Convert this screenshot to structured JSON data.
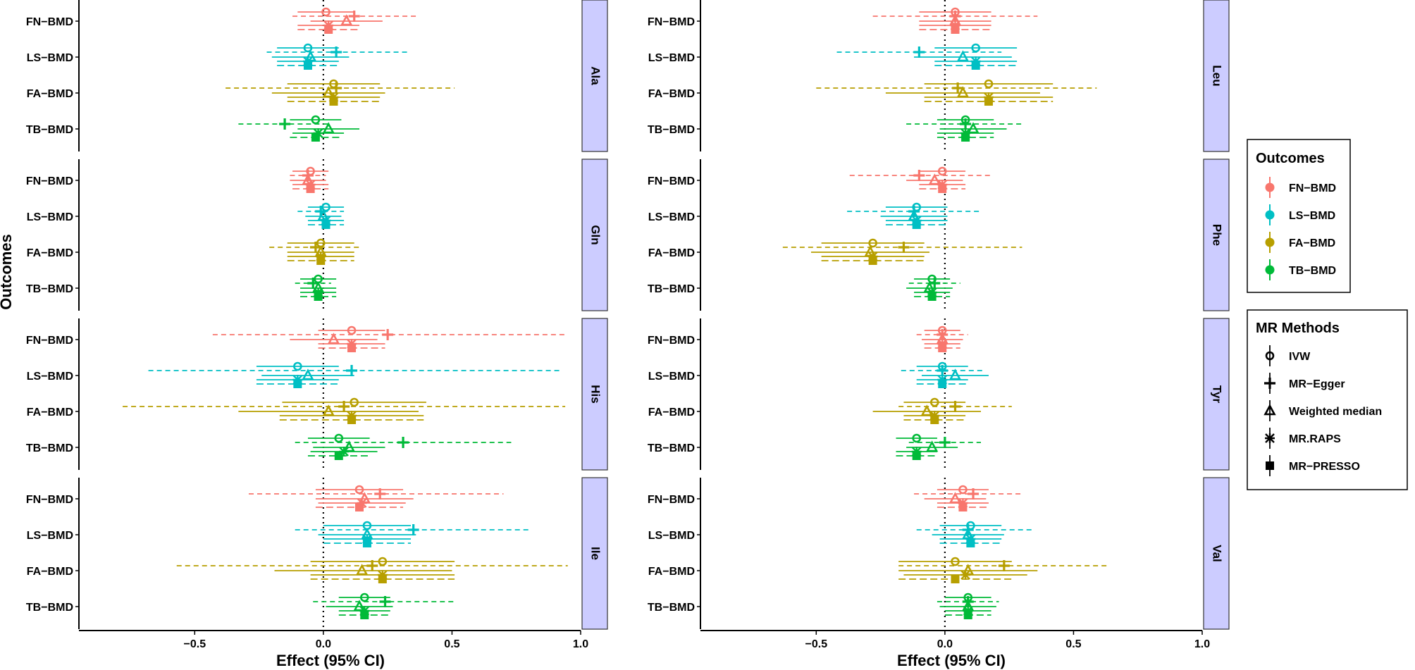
{
  "chart_data": {
    "type": "forest",
    "ylabel": "Outcomes",
    "xlabel": "Effect (95% CI)",
    "xlim": [
      -0.95,
      1.0
    ],
    "xticks": [
      -0.5,
      0.0,
      0.5,
      1.0
    ],
    "xtick_labels": [
      "−0.5",
      "0.0",
      "0.5",
      "1.0"
    ],
    "outcomes": [
      "FN−BMD",
      "LS−BMD",
      "FA−BMD",
      "TB−BMD"
    ],
    "methods": [
      "IVW",
      "MR−Egger",
      "Weighted median",
      "MR.RAPS",
      "MR−PRESSO"
    ],
    "colors": {
      "FN-BMD": "#F8766D",
      "LS-BMD": "#00BFC4",
      "FA-BMD": "#B79F00",
      "TB-BMD": "#00BA38"
    },
    "legend": {
      "outcomes_title": "Outcomes",
      "outcomes_labels": [
        "FN−BMD",
        "LS−BMD",
        "FA−BMD",
        "TB−BMD"
      ],
      "methods_title": "MR Methods",
      "methods_labels": [
        "IVW",
        "MR−Egger",
        "Weighted median",
        "MR.RAPS",
        "MR−PRESSO"
      ]
    },
    "panels": [
      {
        "name": "Ala",
        "col": 0,
        "row": 0,
        "estimates": [
          [
            [
              0.01,
              -0.1,
              0.12
            ],
            [
              0.12,
              -0.12,
              0.36
            ],
            [
              0.09,
              -0.05,
              0.23
            ],
            [
              0.02,
              -0.1,
              0.14
            ],
            [
              0.02,
              -0.1,
              0.14
            ]
          ],
          [
            [
              -0.06,
              -0.18,
              0.06
            ],
            [
              0.05,
              -0.22,
              0.33
            ],
            [
              -0.05,
              -0.2,
              0.1
            ],
            [
              -0.06,
              -0.18,
              0.06
            ],
            [
              -0.06,
              -0.18,
              0.06
            ]
          ],
          [
            [
              0.04,
              -0.14,
              0.22
            ],
            [
              0.05,
              -0.38,
              0.51
            ],
            [
              0.02,
              -0.2,
              0.24
            ],
            [
              0.04,
              -0.14,
              0.22
            ],
            [
              0.04,
              -0.14,
              0.22
            ]
          ],
          [
            [
              -0.03,
              -0.13,
              0.07
            ],
            [
              -0.15,
              -0.33,
              0.03
            ],
            [
              0.02,
              -0.1,
              0.14
            ],
            [
              -0.02,
              -0.12,
              0.08
            ],
            [
              -0.03,
              -0.13,
              0.07
            ]
          ]
        ]
      },
      {
        "name": "Gln",
        "col": 0,
        "row": 1,
        "estimates": [
          [
            [
              -0.05,
              -0.12,
              0.02
            ],
            [
              -0.06,
              -0.13,
              0.01
            ],
            [
              -0.06,
              -0.13,
              0.01
            ],
            [
              -0.05,
              -0.12,
              0.02
            ],
            [
              -0.05,
              -0.12,
              0.02
            ]
          ],
          [
            [
              0.01,
              -0.06,
              0.08
            ],
            [
              -0.01,
              -0.1,
              0.08
            ],
            [
              0.0,
              -0.07,
              0.07
            ],
            [
              0.01,
              -0.06,
              0.08
            ],
            [
              0.01,
              -0.06,
              0.08
            ]
          ],
          [
            [
              -0.01,
              -0.14,
              0.12
            ],
            [
              -0.03,
              -0.21,
              0.15
            ],
            [
              -0.01,
              -0.14,
              0.12
            ],
            [
              -0.01,
              -0.14,
              0.12
            ],
            [
              -0.01,
              -0.14,
              0.12
            ]
          ],
          [
            [
              -0.02,
              -0.09,
              0.05
            ],
            [
              -0.04,
              -0.11,
              0.03
            ],
            [
              -0.02,
              -0.09,
              0.05
            ],
            [
              -0.02,
              -0.09,
              0.05
            ],
            [
              -0.02,
              -0.09,
              0.05
            ]
          ]
        ]
      },
      {
        "name": "His",
        "col": 0,
        "row": 2,
        "estimates": [
          [
            [
              0.11,
              -0.02,
              0.24
            ],
            [
              0.25,
              -0.43,
              0.94
            ],
            [
              0.04,
              -0.13,
              0.21
            ],
            [
              0.11,
              -0.02,
              0.24
            ],
            [
              0.11,
              -0.02,
              0.24
            ]
          ],
          [
            [
              -0.1,
              -0.26,
              0.06
            ],
            [
              0.11,
              -0.68,
              0.92
            ],
            [
              -0.06,
              -0.24,
              0.12
            ],
            [
              -0.1,
              -0.26,
              0.06
            ],
            [
              -0.1,
              -0.26,
              0.06
            ]
          ],
          [
            [
              0.12,
              -0.16,
              0.4
            ],
            [
              0.08,
              -0.78,
              0.94
            ],
            [
              0.02,
              -0.33,
              0.37
            ],
            [
              0.11,
              -0.17,
              0.39
            ],
            [
              0.11,
              -0.17,
              0.39
            ]
          ],
          [
            [
              0.06,
              -0.06,
              0.18
            ],
            [
              0.31,
              -0.11,
              0.73
            ],
            [
              0.1,
              -0.04,
              0.24
            ],
            [
              0.08,
              -0.05,
              0.21
            ],
            [
              0.06,
              -0.06,
              0.18
            ]
          ]
        ]
      },
      {
        "name": "Ile",
        "col": 0,
        "row": 3,
        "estimates": [
          [
            [
              0.14,
              -0.03,
              0.31
            ],
            [
              0.22,
              -0.29,
              0.7
            ],
            [
              0.16,
              -0.03,
              0.35
            ],
            [
              0.15,
              -0.02,
              0.32
            ],
            [
              0.14,
              -0.03,
              0.31
            ]
          ],
          [
            [
              0.17,
              0.0,
              0.34
            ],
            [
              0.35,
              -0.11,
              0.8
            ],
            [
              0.17,
              -0.02,
              0.36
            ],
            [
              0.17,
              0.0,
              0.34
            ],
            [
              0.17,
              0.0,
              0.34
            ]
          ],
          [
            [
              0.23,
              -0.05,
              0.51
            ],
            [
              0.19,
              -0.57,
              0.95
            ],
            [
              0.15,
              -0.19,
              0.5
            ],
            [
              0.23,
              -0.05,
              0.51
            ],
            [
              0.23,
              -0.05,
              0.51
            ]
          ],
          [
            [
              0.16,
              0.06,
              0.26
            ],
            [
              0.24,
              -0.04,
              0.51
            ],
            [
              0.14,
              0.01,
              0.27
            ],
            [
              0.16,
              0.06,
              0.26
            ],
            [
              0.16,
              0.06,
              0.26
            ]
          ]
        ]
      },
      {
        "name": "Leu",
        "col": 1,
        "row": 0,
        "estimates": [
          [
            [
              0.04,
              -0.1,
              0.18
            ],
            [
              0.04,
              -0.28,
              0.36
            ],
            [
              0.04,
              -0.1,
              0.18
            ],
            [
              0.04,
              -0.1,
              0.18
            ],
            [
              0.04,
              -0.1,
              0.18
            ]
          ],
          [
            [
              0.12,
              -0.04,
              0.28
            ],
            [
              -0.1,
              -0.42,
              0.22
            ],
            [
              0.07,
              -0.12,
              0.26
            ],
            [
              0.12,
              -0.04,
              0.28
            ],
            [
              0.12,
              -0.04,
              0.28
            ]
          ],
          [
            [
              0.17,
              -0.08,
              0.42
            ],
            [
              0.05,
              -0.5,
              0.59
            ],
            [
              0.07,
              -0.23,
              0.37
            ],
            [
              0.17,
              -0.08,
              0.42
            ],
            [
              0.17,
              -0.08,
              0.42
            ]
          ],
          [
            [
              0.08,
              -0.03,
              0.19
            ],
            [
              0.08,
              -0.15,
              0.31
            ],
            [
              0.11,
              -0.02,
              0.24
            ],
            [
              0.08,
              -0.03,
              0.19
            ],
            [
              0.08,
              -0.03,
              0.19
            ]
          ]
        ]
      },
      {
        "name": "Phe",
        "col": 1,
        "row": 1,
        "estimates": [
          [
            [
              -0.01,
              -0.1,
              0.08
            ],
            [
              -0.1,
              -0.37,
              0.18
            ],
            [
              -0.04,
              -0.15,
              0.07
            ],
            [
              -0.01,
              -0.1,
              0.08
            ],
            [
              -0.01,
              -0.1,
              0.08
            ]
          ],
          [
            [
              -0.11,
              -0.23,
              0.01
            ],
            [
              -0.12,
              -0.38,
              0.14
            ],
            [
              -0.12,
              -0.25,
              0.01
            ],
            [
              -0.11,
              -0.23,
              0.01
            ],
            [
              -0.11,
              -0.23,
              0.01
            ]
          ],
          [
            [
              -0.28,
              -0.48,
              -0.08
            ],
            [
              -0.16,
              -0.63,
              0.3
            ],
            [
              -0.29,
              -0.52,
              -0.06
            ],
            [
              -0.28,
              -0.48,
              -0.08
            ],
            [
              -0.28,
              -0.48,
              -0.08
            ]
          ],
          [
            [
              -0.05,
              -0.12,
              0.02
            ],
            [
              -0.04,
              -0.14,
              0.06
            ],
            [
              -0.06,
              -0.15,
              0.03
            ],
            [
              -0.05,
              -0.12,
              0.02
            ],
            [
              -0.05,
              -0.12,
              0.02
            ]
          ]
        ]
      },
      {
        "name": "Tyr",
        "col": 1,
        "row": 2,
        "estimates": [
          [
            [
              -0.01,
              -0.08,
              0.06
            ],
            [
              -0.01,
              -0.11,
              0.09
            ],
            [
              -0.01,
              -0.09,
              0.07
            ],
            [
              -0.01,
              -0.08,
              0.06
            ],
            [
              -0.01,
              -0.08,
              0.06
            ]
          ],
          [
            [
              -0.01,
              -0.11,
              0.09
            ],
            [
              -0.01,
              -0.17,
              0.15
            ],
            [
              0.04,
              -0.09,
              0.17
            ],
            [
              -0.01,
              -0.11,
              0.09
            ],
            [
              -0.01,
              -0.11,
              0.09
            ]
          ],
          [
            [
              -0.04,
              -0.16,
              0.08
            ],
            [
              0.04,
              -0.18,
              0.26
            ],
            [
              -0.07,
              -0.28,
              0.14
            ],
            [
              -0.04,
              -0.16,
              0.08
            ],
            [
              -0.04,
              -0.16,
              0.08
            ]
          ],
          [
            [
              -0.11,
              -0.19,
              -0.03
            ],
            [
              0.0,
              -0.14,
              0.14
            ],
            [
              -0.05,
              -0.15,
              0.05
            ],
            [
              -0.11,
              -0.19,
              -0.03
            ],
            [
              -0.11,
              -0.19,
              -0.03
            ]
          ]
        ]
      },
      {
        "name": "Val",
        "col": 1,
        "row": 3,
        "estimates": [
          [
            [
              0.07,
              -0.03,
              0.17
            ],
            [
              0.11,
              -0.12,
              0.3
            ],
            [
              0.04,
              -0.08,
              0.16
            ],
            [
              0.07,
              -0.03,
              0.17
            ],
            [
              0.07,
              -0.03,
              0.17
            ]
          ],
          [
            [
              0.1,
              -0.02,
              0.22
            ],
            [
              0.09,
              -0.11,
              0.34
            ],
            [
              0.09,
              -0.05,
              0.23
            ],
            [
              0.1,
              -0.02,
              0.22
            ],
            [
              0.1,
              -0.02,
              0.22
            ]
          ],
          [
            [
              0.04,
              -0.18,
              0.26
            ],
            [
              0.23,
              -0.18,
              0.64
            ],
            [
              0.09,
              -0.18,
              0.36
            ],
            [
              0.08,
              -0.16,
              0.32
            ],
            [
              0.04,
              -0.18,
              0.26
            ]
          ],
          [
            [
              0.09,
              0.0,
              0.18
            ],
            [
              0.09,
              -0.03,
              0.21
            ],
            [
              0.09,
              -0.02,
              0.2
            ],
            [
              0.09,
              0.0,
              0.18
            ],
            [
              0.09,
              0.0,
              0.18
            ]
          ]
        ]
      }
    ]
  }
}
